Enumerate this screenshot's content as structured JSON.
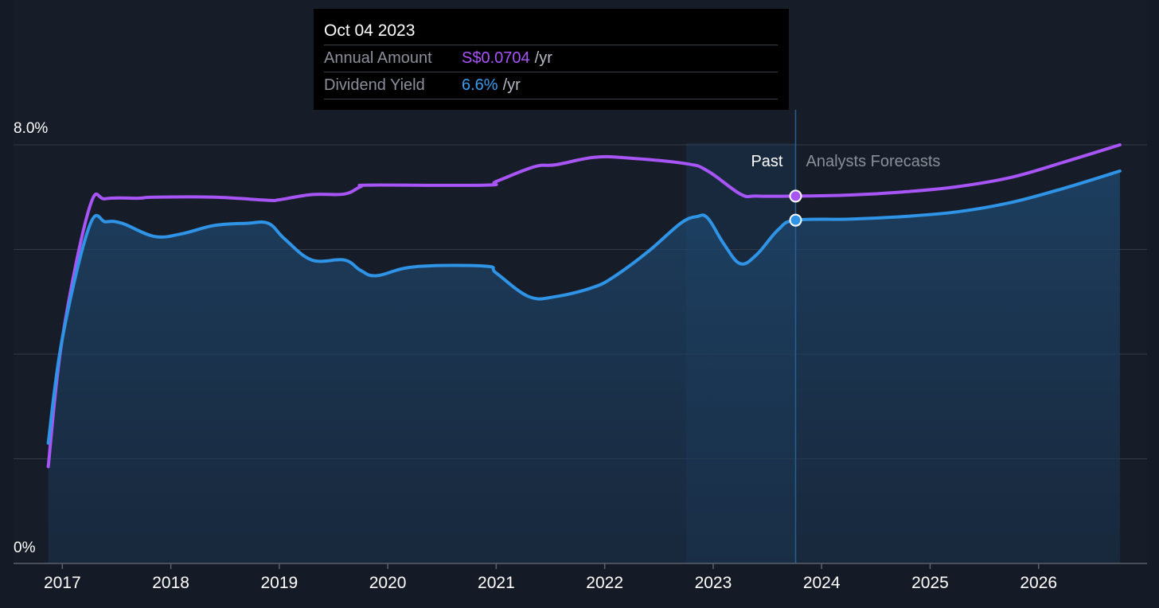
{
  "colors": {
    "background": "#151b26",
    "annual_amount": "#a855f7",
    "dividend_yield": "#2f93e6",
    "grid": "#343b47",
    "past_band": "#1b3a58"
  },
  "tooltip": {
    "date": "Oct 04 2023",
    "rows": [
      {
        "label": "Annual Amount",
        "value": "S$0.0704",
        "unit": "/yr"
      },
      {
        "label": "Dividend Yield",
        "value": "6.6%",
        "unit": "/yr"
      }
    ]
  },
  "chart_data": {
    "type": "line",
    "title": "",
    "xlabel": "",
    "ylabel": "",
    "ylim": [
      0,
      8
    ],
    "xlim": [
      2016.55,
      2027.0
    ],
    "y_tick_labels": [
      {
        "value": 8,
        "label": "8.0%"
      },
      {
        "value": 0,
        "label": "0%"
      }
    ],
    "gridlines_y": [
      2,
      4,
      6,
      8
    ],
    "x_tick_labels": [
      {
        "value": 2017,
        "label": "2017"
      },
      {
        "value": 2018,
        "label": "2018"
      },
      {
        "value": 2019,
        "label": "2019"
      },
      {
        "value": 2020,
        "label": "2020"
      },
      {
        "value": 2021,
        "label": "2021"
      },
      {
        "value": 2022,
        "label": "2022"
      },
      {
        "value": 2023,
        "label": "2023"
      },
      {
        "value": 2024,
        "label": "2024"
      },
      {
        "value": 2025,
        "label": "2025"
      },
      {
        "value": 2026,
        "label": "2026"
      }
    ],
    "annotations": {
      "past_label": "Past",
      "forecast_label": "Analysts Forecasts",
      "past_start": 2022.75,
      "cursor_x": 2023.76
    },
    "series": [
      {
        "name": "Annual Amount",
        "points": [
          [
            2016.87,
            1.85
          ],
          [
            2017.0,
            4.3
          ],
          [
            2017.25,
            6.8
          ],
          [
            2017.4,
            6.97
          ],
          [
            2017.7,
            6.98
          ],
          [
            2017.85,
            7.0
          ],
          [
            2018.4,
            7.0
          ],
          [
            2018.9,
            6.94
          ],
          [
            2019.0,
            6.95
          ],
          [
            2019.3,
            7.05
          ],
          [
            2019.6,
            7.06
          ],
          [
            2019.75,
            7.2
          ],
          [
            2019.85,
            7.23
          ],
          [
            2020.9,
            7.23
          ],
          [
            2021.0,
            7.3
          ],
          [
            2021.35,
            7.58
          ],
          [
            2021.55,
            7.62
          ],
          [
            2021.9,
            7.76
          ],
          [
            2022.2,
            7.75
          ],
          [
            2022.75,
            7.64
          ],
          [
            2022.95,
            7.5
          ],
          [
            2023.25,
            7.06
          ],
          [
            2023.4,
            7.02
          ],
          [
            2023.76,
            7.02
          ],
          [
            2024.25,
            7.04
          ],
          [
            2024.75,
            7.1
          ],
          [
            2025.25,
            7.2
          ],
          [
            2025.75,
            7.38
          ],
          [
            2026.25,
            7.68
          ],
          [
            2026.75,
            8.0
          ]
        ]
      },
      {
        "name": "Dividend Yield",
        "points": [
          [
            2016.87,
            2.3
          ],
          [
            2017.0,
            4.3
          ],
          [
            2017.25,
            6.45
          ],
          [
            2017.4,
            6.53
          ],
          [
            2017.55,
            6.5
          ],
          [
            2017.85,
            6.25
          ],
          [
            2018.1,
            6.3
          ],
          [
            2018.4,
            6.46
          ],
          [
            2018.7,
            6.5
          ],
          [
            2018.9,
            6.5
          ],
          [
            2019.05,
            6.2
          ],
          [
            2019.3,
            5.8
          ],
          [
            2019.6,
            5.8
          ],
          [
            2019.75,
            5.6
          ],
          [
            2019.9,
            5.5
          ],
          [
            2020.25,
            5.67
          ],
          [
            2020.9,
            5.68
          ],
          [
            2021.0,
            5.55
          ],
          [
            2021.3,
            5.1
          ],
          [
            2021.55,
            5.1
          ],
          [
            2021.9,
            5.28
          ],
          [
            2022.1,
            5.5
          ],
          [
            2022.4,
            5.96
          ],
          [
            2022.7,
            6.5
          ],
          [
            2022.85,
            6.63
          ],
          [
            2022.95,
            6.6
          ],
          [
            2023.1,
            6.1
          ],
          [
            2023.25,
            5.73
          ],
          [
            2023.4,
            5.9
          ],
          [
            2023.6,
            6.38
          ],
          [
            2023.76,
            6.56
          ],
          [
            2024.25,
            6.58
          ],
          [
            2024.75,
            6.63
          ],
          [
            2025.25,
            6.72
          ],
          [
            2025.75,
            6.9
          ],
          [
            2026.25,
            7.18
          ],
          [
            2026.75,
            7.5
          ]
        ]
      }
    ],
    "highlight_points": [
      {
        "series": "Annual Amount",
        "x": 2023.76,
        "y": 7.02
      },
      {
        "series": "Dividend Yield",
        "x": 2023.76,
        "y": 6.56
      }
    ]
  }
}
